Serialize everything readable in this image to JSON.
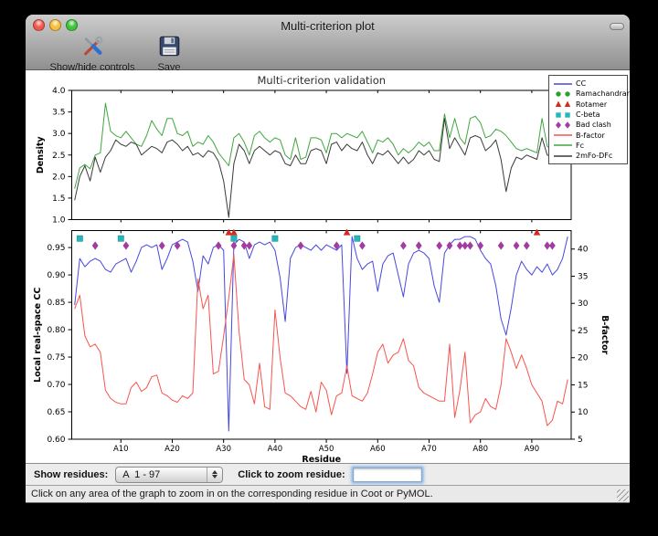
{
  "window": {
    "title": "Multi-criterion plot"
  },
  "toolbar": {
    "show_hide_label": "Show/hide controls",
    "save_label": "Save"
  },
  "controls": {
    "show_residues_label": "Show residues:",
    "residue_range_value": "A  1 - 97",
    "zoom_residue_label": "Click to zoom residue:",
    "zoom_residue_value": ""
  },
  "status_bar": {
    "message": "Click on any area of the graph to zoom in on the corresponding residue in Coot or PyMOL."
  },
  "chart_data": [
    {
      "type": "line",
      "title": "Multi-criterion validation",
      "ylabel": "Density",
      "ylim": [
        1.0,
        4.0
      ],
      "yticks": [
        {
          "v": 1.0,
          "l": "1.0"
        },
        {
          "v": 1.5,
          "l": "1.5"
        },
        {
          "v": 2.0,
          "l": "2.0"
        },
        {
          "v": 2.5,
          "l": "2.5"
        },
        {
          "v": 3.0,
          "l": "3.0"
        },
        {
          "v": 3.5,
          "l": "3.5"
        },
        {
          "v": 4.0,
          "l": "4.0"
        }
      ],
      "series": [
        {
          "name": "Fc",
          "color": "#3fa73f",
          "values": [
            1.72,
            2.2,
            2.28,
            2.18,
            2.5,
            2.55,
            3.7,
            3.05,
            2.95,
            2.9,
            3.05,
            2.9,
            2.75,
            2.7,
            2.95,
            3.3,
            3.1,
            2.95,
            3.35,
            3.35,
            3.0,
            2.95,
            3.05,
            2.7,
            2.8,
            2.75,
            2.95,
            2.8,
            2.55,
            2.4,
            2.25,
            2.9,
            3.0,
            2.8,
            2.5,
            2.95,
            3.05,
            2.9,
            2.8,
            2.9,
            2.85,
            2.5,
            2.4,
            2.9,
            2.4,
            2.45,
            2.9,
            2.9,
            2.85,
            2.55,
            3.0,
            3.0,
            2.9,
            3.0,
            2.95,
            2.9,
            3.05,
            2.8,
            2.55,
            2.85,
            2.8,
            2.9,
            2.75,
            2.5,
            2.65,
            2.55,
            2.65,
            2.8,
            2.7,
            2.8,
            2.6,
            2.6,
            3.45,
            2.9,
            3.35,
            2.9,
            2.75,
            3.35,
            3.4,
            3.25,
            2.9,
            2.95,
            3.1,
            3.05,
            2.95,
            2.8,
            2.65,
            2.6,
            2.65,
            2.6,
            2.55,
            3.35,
            2.7,
            2.6,
            2.75,
            3.55,
            3.0
          ]
        },
        {
          "name": "2mFo-DFc",
          "color": "#3a3a3a",
          "values": [
            1.45,
            2.0,
            2.25,
            1.9,
            2.45,
            2.1,
            2.45,
            2.6,
            2.85,
            2.75,
            2.7,
            2.8,
            2.75,
            2.5,
            2.6,
            2.7,
            2.65,
            2.55,
            2.8,
            2.85,
            2.75,
            2.6,
            2.7,
            2.5,
            2.55,
            2.45,
            2.6,
            2.55,
            2.35,
            1.9,
            1.05,
            2.3,
            2.75,
            2.6,
            2.3,
            2.6,
            2.7,
            2.6,
            2.5,
            2.6,
            2.55,
            2.3,
            2.25,
            2.5,
            2.3,
            2.3,
            2.6,
            2.65,
            2.6,
            2.3,
            2.75,
            2.8,
            2.6,
            2.75,
            2.65,
            2.6,
            2.8,
            2.5,
            2.3,
            2.55,
            2.5,
            2.6,
            2.45,
            2.3,
            2.45,
            2.3,
            2.4,
            2.6,
            2.5,
            2.6,
            2.4,
            2.35,
            3.35,
            2.65,
            2.9,
            2.7,
            2.5,
            2.9,
            2.95,
            2.9,
            2.6,
            2.7,
            2.85,
            2.4,
            1.65,
            2.2,
            2.45,
            2.4,
            2.5,
            2.45,
            2.4,
            2.9,
            2.5,
            2.45,
            2.6,
            3.05,
            2.95
          ]
        }
      ],
      "legend": [
        {
          "label": "CC",
          "kind": "line",
          "color": "#4747e0"
        },
        {
          "label": "Ramachandran",
          "kind": "circle",
          "color": "#2ba02b"
        },
        {
          "label": "Rotamer",
          "kind": "triangle",
          "color": "#d42a1e"
        },
        {
          "label": "C-beta",
          "kind": "square",
          "color": "#25b7b7"
        },
        {
          "label": "Bad clash",
          "kind": "diamond",
          "color": "#a23ca2"
        },
        {
          "label": "B-factor",
          "kind": "line",
          "color": "#f8544e"
        },
        {
          "label": "Fc",
          "kind": "line",
          "color": "#3fa73f"
        },
        {
          "label": "2mFo-DFc",
          "kind": "line",
          "color": "#3a3a3a"
        }
      ]
    },
    {
      "type": "line",
      "xlabel": "Residue",
      "xlim": [
        0.43,
        97.67
      ],
      "xticks": [
        {
          "v": 10,
          "l": "A10"
        },
        {
          "v": 20,
          "l": "A20"
        },
        {
          "v": 30,
          "l": "A30"
        },
        {
          "v": 40,
          "l": "A40"
        },
        {
          "v": 50,
          "l": "A50"
        },
        {
          "v": 60,
          "l": "A60"
        },
        {
          "v": 70,
          "l": "A70"
        },
        {
          "v": 80,
          "l": "A80"
        },
        {
          "v": 90,
          "l": "A90"
        }
      ],
      "ylabel_left": "Local real-space CC",
      "ylim_left": [
        0.6,
        0.981
      ],
      "yticks_left": [
        {
          "v": 0.6,
          "l": "0.60"
        },
        {
          "v": 0.65,
          "l": "0.65"
        },
        {
          "v": 0.7,
          "l": "0.70"
        },
        {
          "v": 0.75,
          "l": "0.75"
        },
        {
          "v": 0.8,
          "l": "0.80"
        },
        {
          "v": 0.85,
          "l": "0.85"
        },
        {
          "v": 0.9,
          "l": "0.90"
        },
        {
          "v": 0.95,
          "l": "0.95"
        }
      ],
      "ylabel_right": "B-factor",
      "ylim_right": [
        5,
        43.4
      ],
      "yticks_right": [
        {
          "v": 5,
          "l": "5"
        },
        {
          "v": 10,
          "l": "10"
        },
        {
          "v": 15,
          "l": "15"
        },
        {
          "v": 20,
          "l": "20"
        },
        {
          "v": 25,
          "l": "25"
        },
        {
          "v": 30,
          "l": "30"
        },
        {
          "v": 35,
          "l": "35"
        },
        {
          "v": 40,
          "l": "40"
        }
      ],
      "series": [
        {
          "name": "CC",
          "axis": "left",
          "color": "#4747e0",
          "values": [
            0.845,
            0.93,
            0.915,
            0.925,
            0.93,
            0.925,
            0.91,
            0.905,
            0.92,
            0.925,
            0.93,
            0.905,
            0.925,
            0.95,
            0.955,
            0.95,
            0.955,
            0.91,
            0.93,
            0.955,
            0.96,
            0.965,
            0.96,
            0.925,
            0.87,
            0.935,
            0.92,
            0.95,
            0.955,
            0.945,
            0.615,
            0.955,
            0.965,
            0.96,
            0.93,
            0.955,
            0.96,
            0.955,
            0.96,
            0.945,
            0.895,
            0.815,
            0.93,
            0.95,
            0.955,
            0.95,
            0.945,
            0.955,
            0.945,
            0.955,
            0.95,
            0.945,
            0.955,
            0.72,
            0.97,
            0.93,
            0.91,
            0.92,
            0.925,
            0.87,
            0.92,
            0.935,
            0.94,
            0.9,
            0.86,
            0.92,
            0.94,
            0.945,
            0.94,
            0.93,
            0.88,
            0.85,
            0.94,
            0.955,
            0.965,
            0.965,
            0.97,
            0.97,
            0.965,
            0.945,
            0.93,
            0.92,
            0.88,
            0.82,
            0.79,
            0.84,
            0.9,
            0.925,
            0.91,
            0.9,
            0.915,
            0.905,
            0.92,
            0.9,
            0.91,
            0.93,
            0.97
          ]
        },
        {
          "name": "B-factor",
          "axis": "right",
          "color": "#f8544e",
          "values": [
            29,
            31.5,
            24,
            22,
            22.5,
            21,
            14,
            12.5,
            11.8,
            11.5,
            11.5,
            14.5,
            15.5,
            13.8,
            14.5,
            16.5,
            16.8,
            13.5,
            13,
            12.2,
            11.8,
            13,
            12.5,
            13.5,
            34.5,
            29,
            31.5,
            17,
            17.5,
            24,
            31,
            39,
            25,
            16,
            15,
            11.5,
            19,
            11,
            10.5,
            28.8,
            20,
            13.5,
            13,
            12,
            11,
            10.5,
            13.8,
            10,
            15.5,
            14,
            9.5,
            13,
            13.5,
            18.5,
            13,
            12.5,
            12,
            13.5,
            17,
            21,
            22.5,
            19,
            20.5,
            21,
            23.5,
            19.5,
            18.5,
            14.5,
            13.5,
            13,
            12.5,
            12,
            12,
            22.5,
            9,
            14,
            21,
            8,
            9.5,
            10,
            12.5,
            11,
            10.5,
            15,
            23.5,
            21,
            18,
            20.5,
            18,
            15,
            13.5,
            12,
            7.5,
            8.5,
            12,
            11.5,
            16
          ]
        }
      ],
      "outlier_markers": [
        {
          "name": "Ramachandran",
          "shape": "circle",
          "color": "#2ba02b",
          "y": 0.99,
          "residues": []
        },
        {
          "name": "Rotamer",
          "shape": "triangle",
          "color": "#d42a1e",
          "y": 0.9775,
          "residues": [
            31,
            32,
            54,
            91
          ]
        },
        {
          "name": "C-beta",
          "shape": "square",
          "color": "#25b7b7",
          "y": 0.9665,
          "residues": [
            2,
            10,
            32,
            40,
            56
          ]
        },
        {
          "name": "Bad clash",
          "shape": "diamond",
          "color": "#a23ca2",
          "y": 0.9535,
          "residues": [
            5,
            11,
            18,
            21,
            29,
            32,
            34,
            35,
            45,
            52,
            57,
            65,
            68,
            72,
            74,
            76,
            77,
            78,
            80,
            84,
            87,
            89,
            93,
            94
          ]
        }
      ]
    }
  ]
}
